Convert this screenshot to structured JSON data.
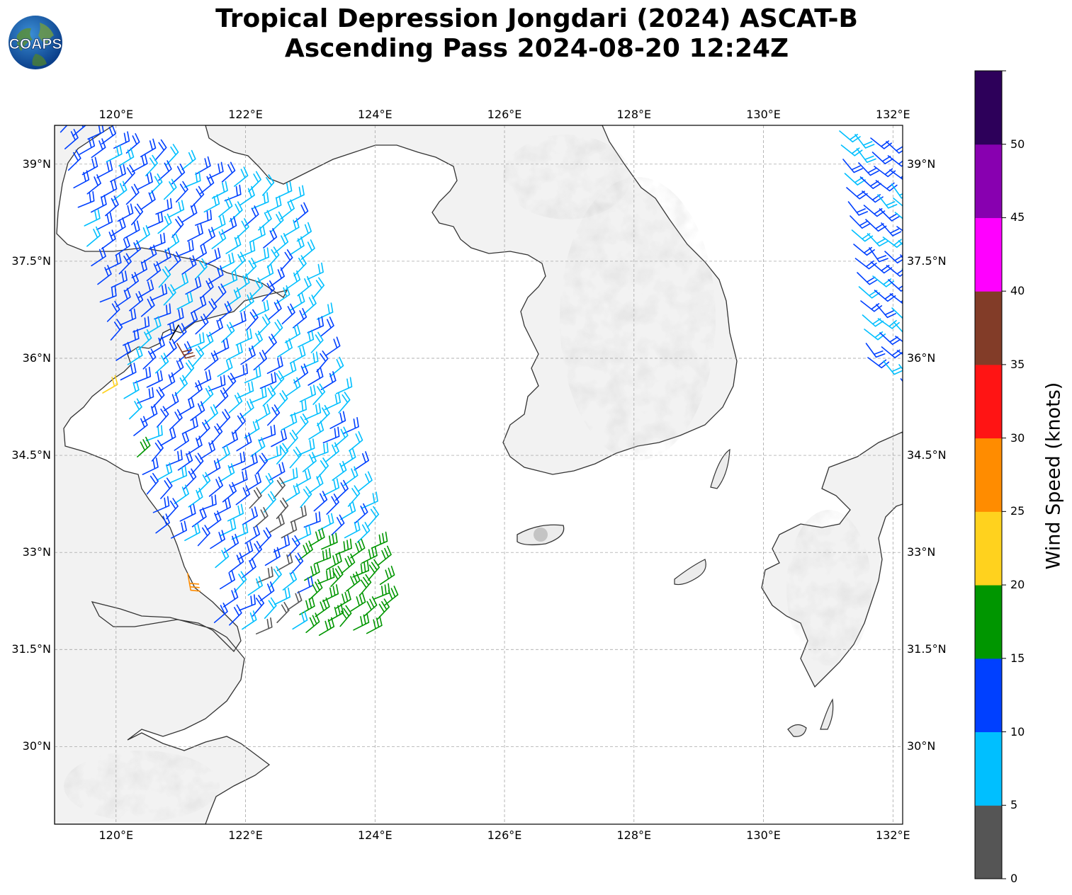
{
  "title": {
    "line1": "Tropical Depression Jongdari (2024) ASCAT-B",
    "line2": "Ascending Pass 2024-08-20 12:24Z"
  },
  "logo": {
    "text": "COAPS",
    "icon": "globe-icon"
  },
  "map": {
    "lon_range": [
      119.05,
      132.15
    ],
    "lat_range": [
      28.8,
      39.6
    ],
    "lon_ticks": [
      "120°E",
      "122°E",
      "124°E",
      "126°E",
      "128°E",
      "130°E",
      "132°E"
    ],
    "lat_ticks": [
      "39°N",
      "37.5°N",
      "36°N",
      "34.5°N",
      "33°N",
      "31.5°N",
      "30°N"
    ],
    "gridlines": true,
    "gridline_style": "dashed",
    "land_color": "#e3e3e3",
    "coast_color": "#333333"
  },
  "colorbar": {
    "label": "Wind Speed (knots)",
    "ticks": [
      "0",
      "5",
      "10",
      "15",
      "20",
      "25",
      "30",
      "35",
      "40",
      "45",
      "50"
    ],
    "colors": [
      "#555555",
      "#00bfff",
      "#0040ff",
      "#009600",
      "#ffd21e",
      "#ff8c00",
      "#ff1414",
      "#823c28",
      "#ff00ff",
      "#8800b0",
      "#2d005a"
    ]
  },
  "wind_swaths": [
    {
      "name": "yellow-sea-swath",
      "color_mix": [
        "#0040ff",
        "#00bfff",
        "#009600"
      ],
      "coverage": "119.1°E-124.5°E, 31.8°N-39.6°N"
    },
    {
      "name": "japan-sea-swath",
      "color_mix": [
        "#0040ff",
        "#00bfff"
      ],
      "coverage": "131.1°E-132.1°E, 35.7°N-39.6°N"
    }
  ]
}
